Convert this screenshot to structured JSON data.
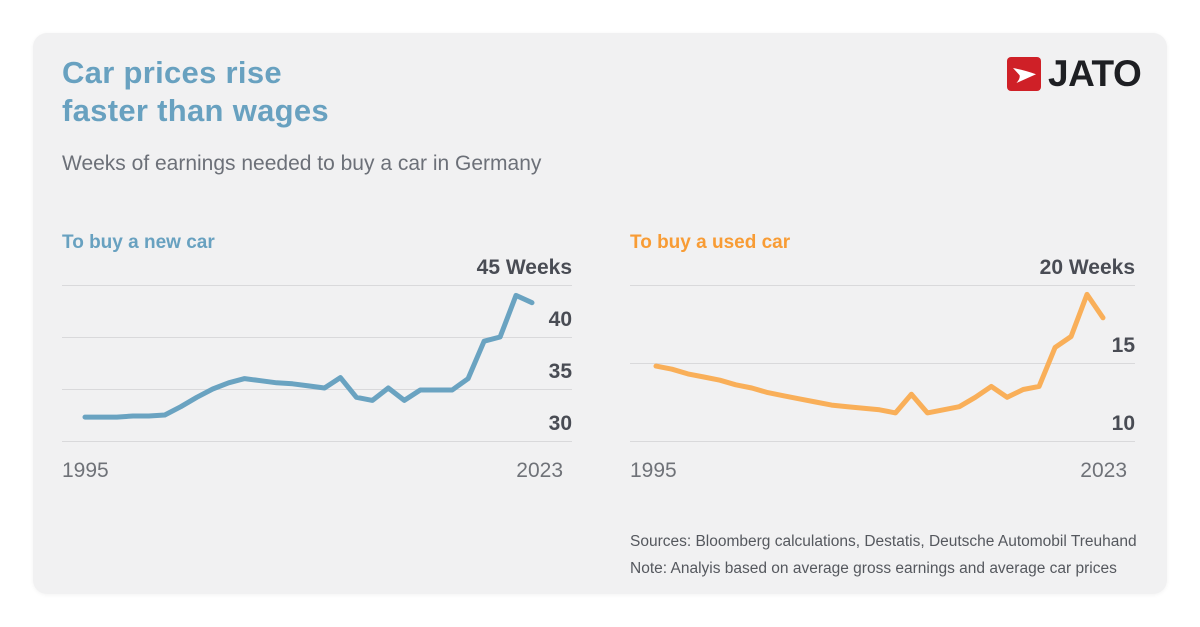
{
  "header": {
    "title_line1": "Car prices rise",
    "title_line2": "faster than wages",
    "subtitle": "Weeks of earnings needed to buy a car in Germany",
    "logo_text": "JATO"
  },
  "colors": {
    "title_blue": "#68a1c0",
    "new_car_label": "#68a1c0",
    "used_car_label": "#f89c35",
    "new_car_line": "#6aa3c1",
    "used_car_line": "#f9af59",
    "logo_red": "#cf2027",
    "logo_text_dark": "#1e1f23",
    "card_bg": "#f1f1f2",
    "gridline": "#d9d9db",
    "axis_value_text": "#494c54",
    "year_text": "#6f7278"
  },
  "footer": {
    "sources": "Sources: Bloomberg calculations, Destatis, Deutsche Automobil Treuhand",
    "note": "Note: Analyis based on average gross earnings and average car prices"
  },
  "chart_data": [
    {
      "type": "line",
      "title": "To buy a new car",
      "title_color": "#68a1c0",
      "color": "#6aa3c1",
      "ylabel": "Weeks of earnings",
      "yticks": [
        45,
        40,
        35,
        30
      ],
      "ytick_labels": [
        "45 Weeks",
        "40",
        "35",
        "30"
      ],
      "xtick_labels": [
        "1995",
        "2023"
      ],
      "ylim": [
        28.5,
        46.5
      ],
      "grid": true,
      "x": [
        1995,
        1996,
        1997,
        1998,
        1999,
        2000,
        2001,
        2002,
        2003,
        2004,
        2005,
        2006,
        2007,
        2008,
        2009,
        2010,
        2011,
        2012,
        2013,
        2014,
        2015,
        2016,
        2017,
        2018,
        2019,
        2020,
        2021,
        2022,
        2023
      ],
      "values": [
        32.3,
        32.3,
        32.3,
        32.4,
        32.4,
        32.5,
        33.3,
        34.2,
        35.0,
        35.6,
        36.0,
        35.8,
        35.6,
        35.5,
        35.3,
        35.1,
        36.1,
        34.2,
        33.9,
        35.1,
        33.9,
        34.9,
        34.9,
        34.9,
        36.0,
        39.6,
        40.0,
        44.0,
        43.3
      ]
    },
    {
      "type": "line",
      "title": "To buy a used car",
      "title_color": "#f89c35",
      "color": "#f9af59",
      "ylabel": "Weeks of earnings",
      "yticks": [
        20,
        15,
        10
      ],
      "ytick_labels": [
        "20 Weeks",
        "15",
        "10"
      ],
      "xtick_labels": [
        "1995",
        "2023"
      ],
      "ylim": [
        8.5,
        21.5
      ],
      "grid": true,
      "x": [
        1995,
        1996,
        1997,
        1998,
        1999,
        2000,
        2001,
        2002,
        2003,
        2004,
        2005,
        2006,
        2007,
        2008,
        2009,
        2010,
        2011,
        2012,
        2013,
        2014,
        2015,
        2016,
        2017,
        2018,
        2019,
        2020,
        2021,
        2022,
        2023
      ],
      "values": [
        14.8,
        14.6,
        14.3,
        14.1,
        13.9,
        13.6,
        13.4,
        13.1,
        12.9,
        12.7,
        12.5,
        12.3,
        12.2,
        12.1,
        12.0,
        11.8,
        13.0,
        11.8,
        12.0,
        12.2,
        12.8,
        13.5,
        12.8,
        13.3,
        13.5,
        16.0,
        16.7,
        19.4,
        17.9
      ]
    }
  ]
}
